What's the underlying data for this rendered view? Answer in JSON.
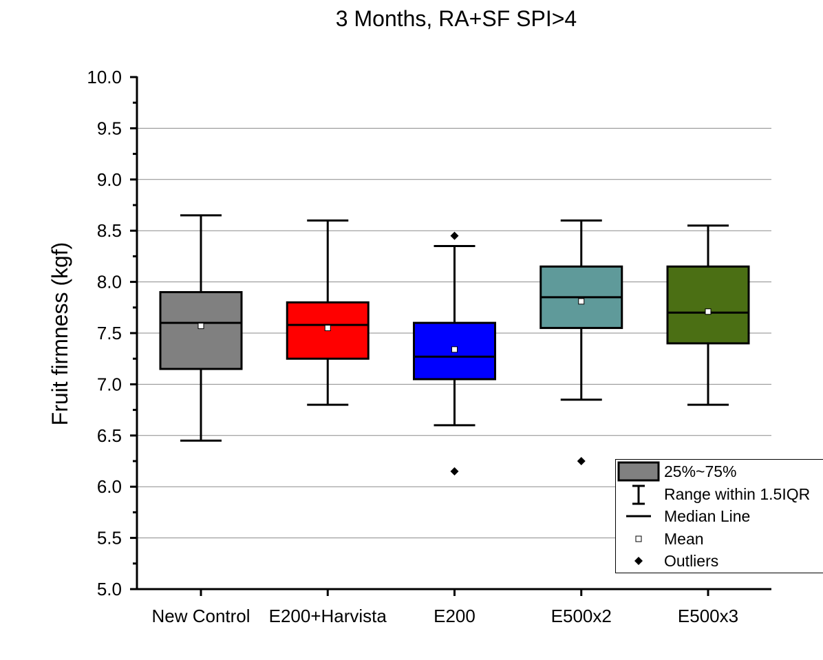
{
  "chart_data": {
    "type": "box",
    "title": "3 Months, RA+SF SPI>4",
    "xlabel": "",
    "ylabel": "Fruit firmness (kgf)",
    "ylim": [
      5.0,
      10.0
    ],
    "yticks": [
      "5.0",
      "5.5",
      "6.0",
      "6.5",
      "7.0",
      "7.5",
      "8.0",
      "8.5",
      "9.0",
      "9.5",
      "10.0"
    ],
    "grid": true,
    "legend_position": "bottom-right",
    "categories": [
      "New Control",
      "E200+Harvista",
      "E200",
      "E500x2",
      "E500x3"
    ],
    "series": [
      {
        "label": "New Control",
        "color": "#808080",
        "whisker_low": 6.45,
        "q1": 7.15,
        "median": 7.6,
        "q3": 7.9,
        "whisker_high": 8.65,
        "mean": 7.57,
        "outliers": []
      },
      {
        "label": "E200+Harvista",
        "color": "#ff0000",
        "whisker_low": 6.8,
        "q1": 7.25,
        "median": 7.58,
        "q3": 7.8,
        "whisker_high": 8.6,
        "mean": 7.55,
        "outliers": []
      },
      {
        "label": "E200",
        "color": "#0000ff",
        "whisker_low": 6.6,
        "q1": 7.05,
        "median": 7.27,
        "q3": 7.6,
        "whisker_high": 8.35,
        "mean": 7.34,
        "outliers": [
          8.45,
          6.15
        ]
      },
      {
        "label": "E500x2",
        "color": "#5f9a9a",
        "whisker_low": 6.85,
        "q1": 7.55,
        "median": 7.85,
        "q3": 8.15,
        "whisker_high": 8.6,
        "mean": 7.81,
        "outliers": [
          6.25
        ]
      },
      {
        "label": "E500x3",
        "color": "#4b6f14",
        "whisker_low": 6.8,
        "q1": 7.4,
        "median": 7.7,
        "q3": 8.15,
        "whisker_high": 8.55,
        "mean": 7.71,
        "outliers": []
      }
    ],
    "legend": [
      {
        "key": "box",
        "label": "25%~75%"
      },
      {
        "key": "whisker",
        "label": "Range within 1.5IQR"
      },
      {
        "key": "median",
        "label": "Median Line"
      },
      {
        "key": "mean",
        "label": "Mean"
      },
      {
        "key": "outlier",
        "label": "Outliers"
      }
    ]
  }
}
